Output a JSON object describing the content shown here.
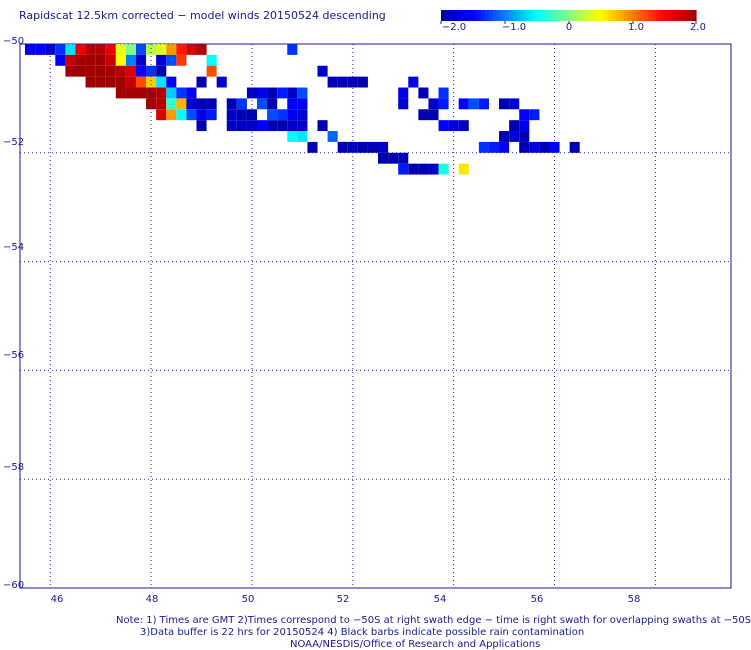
{
  "title": "Rapidscat 12.5km corrected − model winds 20150524 descending",
  "colorbar": {
    "ticks": [
      "−2.0",
      "−1.0",
      "0",
      "1.0",
      "2.0"
    ],
    "min": -2.0,
    "max": 2.0,
    "colors": [
      "#0000a0",
      "#0000ff",
      "#0080ff",
      "#00ffff",
      "#80ff80",
      "#ffff00",
      "#ff8000",
      "#ff0000",
      "#a00000"
    ]
  },
  "lat_labels": [
    "−50",
    "−52",
    "−54",
    "−56",
    "−58",
    "−60"
  ],
  "lon_labels": [
    "46",
    "48",
    "50",
    "52",
    "54",
    "56",
    "58"
  ],
  "notes": [
    "Note: 1) Times are GMT 2)Times correspond to −50S at right swath edge − time is right swath for overlapping swaths at −50S",
    "3)Data buffer is 22 hrs for 20150524 4) Black barbs indicate possible rain contamination",
    "NOAA/NESDIS/Office of Research and Applications"
  ],
  "chart_data": {
    "type": "heatmap",
    "title": "Rapidscat 12.5km corrected − model winds 20150524 descending",
    "x_range": [
      45.4,
      59.5
    ],
    "y_range": [
      -60,
      -50
    ],
    "cell_deg": 0.2,
    "value_range": [
      -2.0,
      2.0
    ],
    "grid": true,
    "cells": [
      [
        45.6,
        -50.1,
        -1.6
      ],
      [
        45.8,
        -50.1,
        -1.5
      ],
      [
        46.0,
        -50.1,
        -1.8
      ],
      [
        46.2,
        -50.1,
        -1.3
      ],
      [
        46.4,
        -50.1,
        -0.6
      ],
      [
        46.6,
        -50.1,
        1.6
      ],
      [
        46.8,
        -50.1,
        1.9
      ],
      [
        47.0,
        -50.1,
        1.9
      ],
      [
        47.2,
        -50.1,
        1.6
      ],
      [
        47.4,
        -50.1,
        0.4
      ],
      [
        47.6,
        -50.1,
        0.0
      ],
      [
        47.8,
        -50.1,
        -1.2
      ],
      [
        48.0,
        -50.1,
        0.2
      ],
      [
        48.2,
        -50.1,
        0.4
      ],
      [
        48.4,
        -50.1,
        0.9
      ],
      [
        48.6,
        -50.1,
        1.4
      ],
      [
        48.8,
        -50.1,
        1.7
      ],
      [
        49.0,
        -50.1,
        1.9
      ],
      [
        50.8,
        -50.1,
        -1.3
      ],
      [
        46.2,
        -50.3,
        -1.6
      ],
      [
        46.4,
        -50.3,
        1.8
      ],
      [
        46.6,
        -50.3,
        2.0
      ],
      [
        46.8,
        -50.3,
        2.0
      ],
      [
        47.0,
        -50.3,
        2.0
      ],
      [
        47.2,
        -50.3,
        1.8
      ],
      [
        47.4,
        -50.3,
        0.5
      ],
      [
        47.6,
        -50.3,
        -1.0
      ],
      [
        47.8,
        -50.3,
        -1.8
      ],
      [
        48.2,
        -50.3,
        -1.7
      ],
      [
        48.4,
        -50.3,
        -1.2
      ],
      [
        48.6,
        -50.3,
        1.3
      ],
      [
        49.2,
        -50.3,
        -0.5
      ],
      [
        46.4,
        -50.5,
        2.0
      ],
      [
        46.6,
        -50.5,
        2.0
      ],
      [
        46.8,
        -50.5,
        2.0
      ],
      [
        47.0,
        -50.5,
        2.0
      ],
      [
        47.2,
        -50.5,
        2.0
      ],
      [
        47.4,
        -50.5,
        1.9
      ],
      [
        47.6,
        -50.5,
        1.7
      ],
      [
        47.8,
        -50.5,
        -1.5
      ],
      [
        48.0,
        -50.5,
        -1.3
      ],
      [
        48.2,
        -50.5,
        -1.9
      ],
      [
        49.2,
        -50.5,
        1.2
      ],
      [
        51.4,
        -50.5,
        -1.8
      ],
      [
        46.8,
        -50.7,
        2.0
      ],
      [
        47.0,
        -50.7,
        2.0
      ],
      [
        47.2,
        -50.7,
        2.0
      ],
      [
        47.4,
        -50.7,
        2.0
      ],
      [
        47.6,
        -50.7,
        1.8
      ],
      [
        47.8,
        -50.7,
        1.2
      ],
      [
        48.0,
        -50.7,
        0.7
      ],
      [
        48.2,
        -50.7,
        -0.6
      ],
      [
        48.4,
        -50.7,
        -1.6
      ],
      [
        49.0,
        -50.7,
        -1.9
      ],
      [
        49.4,
        -50.7,
        -1.8
      ],
      [
        51.6,
        -50.7,
        -1.9
      ],
      [
        51.8,
        -50.7,
        -1.9
      ],
      [
        52.0,
        -50.7,
        -1.9
      ],
      [
        52.2,
        -50.7,
        -1.9
      ],
      [
        53.2,
        -50.7,
        -1.6
      ],
      [
        47.4,
        -50.9,
        2.0
      ],
      [
        47.6,
        -50.9,
        2.0
      ],
      [
        47.8,
        -50.9,
        2.0
      ],
      [
        48.0,
        -50.9,
        2.0
      ],
      [
        48.2,
        -50.9,
        1.9
      ],
      [
        48.4,
        -50.9,
        -0.7
      ],
      [
        48.6,
        -50.9,
        -1.3
      ],
      [
        48.8,
        -50.9,
        -1.5
      ],
      [
        50.0,
        -50.9,
        -1.8
      ],
      [
        50.2,
        -50.9,
        -1.6
      ],
      [
        53.4,
        -50.9,
        -1.9
      ],
      [
        53.8,
        -50.9,
        -1.3
      ],
      [
        50.4,
        -50.9,
        -1.9
      ],
      [
        50.6,
        -50.9,
        -1.4
      ],
      [
        50.8,
        -50.9,
        -1.8
      ],
      [
        51.0,
        -50.9,
        -1.2
      ],
      [
        53.0,
        -50.9,
        -1.6
      ],
      [
        48.0,
        -51.1,
        2.0
      ],
      [
        48.2,
        -51.1,
        1.9
      ],
      [
        48.4,
        -51.1,
        -0.3
      ],
      [
        48.6,
        -51.1,
        0.8
      ],
      [
        48.8,
        -51.1,
        -1.7
      ],
      [
        49.0,
        -51.1,
        -1.9
      ],
      [
        49.2,
        -51.1,
        -1.9
      ],
      [
        49.6,
        -51.1,
        -1.9
      ],
      [
        49.8,
        -51.1,
        -1.3
      ],
      [
        50.2,
        -51.1,
        -1.2
      ],
      [
        50.4,
        -51.1,
        -1.9
      ],
      [
        50.8,
        -51.1,
        -1.5
      ],
      [
        51.0,
        -51.1,
        -1.6
      ],
      [
        53.0,
        -51.1,
        -1.7
      ],
      [
        53.6,
        -51.1,
        -1.8
      ],
      [
        53.8,
        -51.1,
        -1.4
      ],
      [
        54.2,
        -51.1,
        -1.5
      ],
      [
        54.4,
        -51.1,
        -1.2
      ],
      [
        54.6,
        -51.1,
        -1.4
      ],
      [
        55.0,
        -51.1,
        -1.9
      ],
      [
        55.2,
        -51.1,
        -1.7
      ],
      [
        48.2,
        -51.3,
        1.7
      ],
      [
        48.4,
        -51.3,
        0.9
      ],
      [
        48.6,
        -51.3,
        -0.5
      ],
      [
        48.8,
        -51.3,
        -1.2
      ],
      [
        49.0,
        -51.3,
        -1.6
      ],
      [
        49.2,
        -51.3,
        -1.4
      ],
      [
        49.6,
        -51.3,
        -1.8
      ],
      [
        49.8,
        -51.3,
        -1.9
      ],
      [
        50.0,
        -51.3,
        -1.9
      ],
      [
        50.4,
        -51.3,
        -1.2
      ],
      [
        50.6,
        -51.3,
        -1.3
      ],
      [
        50.8,
        -51.3,
        -1.6
      ],
      [
        51.0,
        -51.3,
        -1.7
      ],
      [
        53.4,
        -51.3,
        -1.9
      ],
      [
        53.6,
        -51.3,
        -1.9
      ],
      [
        55.4,
        -51.3,
        -1.5
      ],
      [
        55.6,
        -51.3,
        -1.4
      ],
      [
        49.0,
        -51.5,
        -1.9
      ],
      [
        49.6,
        -51.5,
        -1.8
      ],
      [
        49.8,
        -51.5,
        -1.8
      ],
      [
        50.0,
        -51.5,
        -1.8
      ],
      [
        50.2,
        -51.5,
        -1.5
      ],
      [
        50.4,
        -51.5,
        -1.9
      ],
      [
        50.6,
        -51.5,
        -1.9
      ],
      [
        50.8,
        -51.5,
        -1.8
      ],
      [
        51.0,
        -51.5,
        -1.8
      ],
      [
        51.4,
        -51.5,
        -1.9
      ],
      [
        53.8,
        -51.5,
        -1.5
      ],
      [
        54.0,
        -51.5,
        -1.7
      ],
      [
        54.2,
        -51.5,
        -1.9
      ],
      [
        55.2,
        -51.5,
        -1.9
      ],
      [
        55.4,
        -51.5,
        -1.6
      ],
      [
        50.8,
        -51.7,
        -0.5
      ],
      [
        51.0,
        -51.7,
        -0.6
      ],
      [
        51.6,
        -51.7,
        -1.1
      ],
      [
        55.2,
        -51.7,
        -1.7
      ],
      [
        55.4,
        -51.7,
        -1.9
      ],
      [
        51.2,
        -51.9,
        -1.9
      ],
      [
        51.8,
        -51.9,
        -1.9
      ],
      [
        52.0,
        -51.9,
        -1.9
      ],
      [
        52.2,
        -51.9,
        -1.9
      ],
      [
        52.4,
        -51.9,
        -1.9
      ],
      [
        52.6,
        -51.9,
        -1.8
      ],
      [
        54.6,
        -51.9,
        -1.3
      ],
      [
        54.8,
        -51.9,
        -1.4
      ],
      [
        55.0,
        -51.9,
        -1.5
      ],
      [
        55.4,
        -51.9,
        -1.9
      ],
      [
        55.6,
        -51.9,
        -1.7
      ],
      [
        55.8,
        -51.9,
        -1.9
      ],
      [
        56.0,
        -51.9,
        -1.5
      ],
      [
        56.4,
        -51.9,
        -1.9
      ],
      [
        55.0,
        -51.7,
        -1.9
      ],
      [
        52.6,
        -52.1,
        -1.9
      ],
      [
        52.8,
        -52.1,
        -1.9
      ],
      [
        53.0,
        -52.1,
        -1.9
      ],
      [
        53.0,
        -52.3,
        -1.4
      ],
      [
        53.2,
        -52.3,
        -1.9
      ],
      [
        53.4,
        -52.3,
        -1.9
      ],
      [
        53.6,
        -52.3,
        -1.8
      ],
      [
        53.8,
        -52.3,
        -0.4
      ],
      [
        54.2,
        -52.3,
        0.6
      ]
    ]
  }
}
